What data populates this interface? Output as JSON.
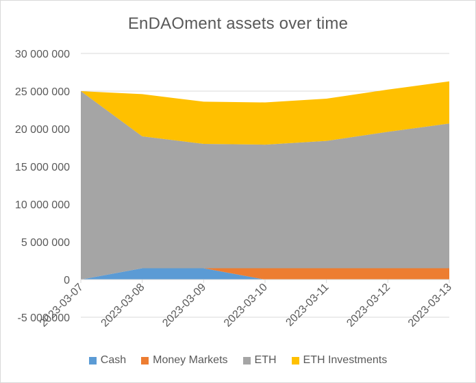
{
  "chart_data": {
    "type": "area",
    "stacked": true,
    "title": "EnDAOment assets over time",
    "categories": [
      "2023-03-07",
      "2023-03-08",
      "2023-03-09",
      "2023-03-10",
      "2023-03-11",
      "2023-03-12",
      "2023-03-13"
    ],
    "y_ticks": [
      "-5 000 000",
      "0",
      "5 000 000",
      "10 000 000",
      "15 000 000",
      "20 000 000",
      "25 000 000",
      "30 000 000"
    ],
    "ylim": [
      -5000000,
      30000000
    ],
    "grid": true,
    "legend_position": "bottom",
    "series": [
      {
        "name": "Cash",
        "color": "#5b9bd5",
        "values": [
          0,
          1500000,
          1500000,
          0,
          0,
          0,
          0
        ]
      },
      {
        "name": "Money Markets",
        "color": "#ed7d31",
        "values": [
          0,
          0,
          0,
          1500000,
          1500000,
          1500000,
          1500000
        ]
      },
      {
        "name": "ETH",
        "color": "#a5a5a5",
        "values": [
          25000000,
          17500000,
          16500000,
          16400000,
          16900000,
          18100000,
          19200000
        ]
      },
      {
        "name": "ETH Investments",
        "color": "#ffc000",
        "values": [
          0,
          5600000,
          5600000,
          5600000,
          5600000,
          5600000,
          5600000
        ]
      }
    ]
  }
}
